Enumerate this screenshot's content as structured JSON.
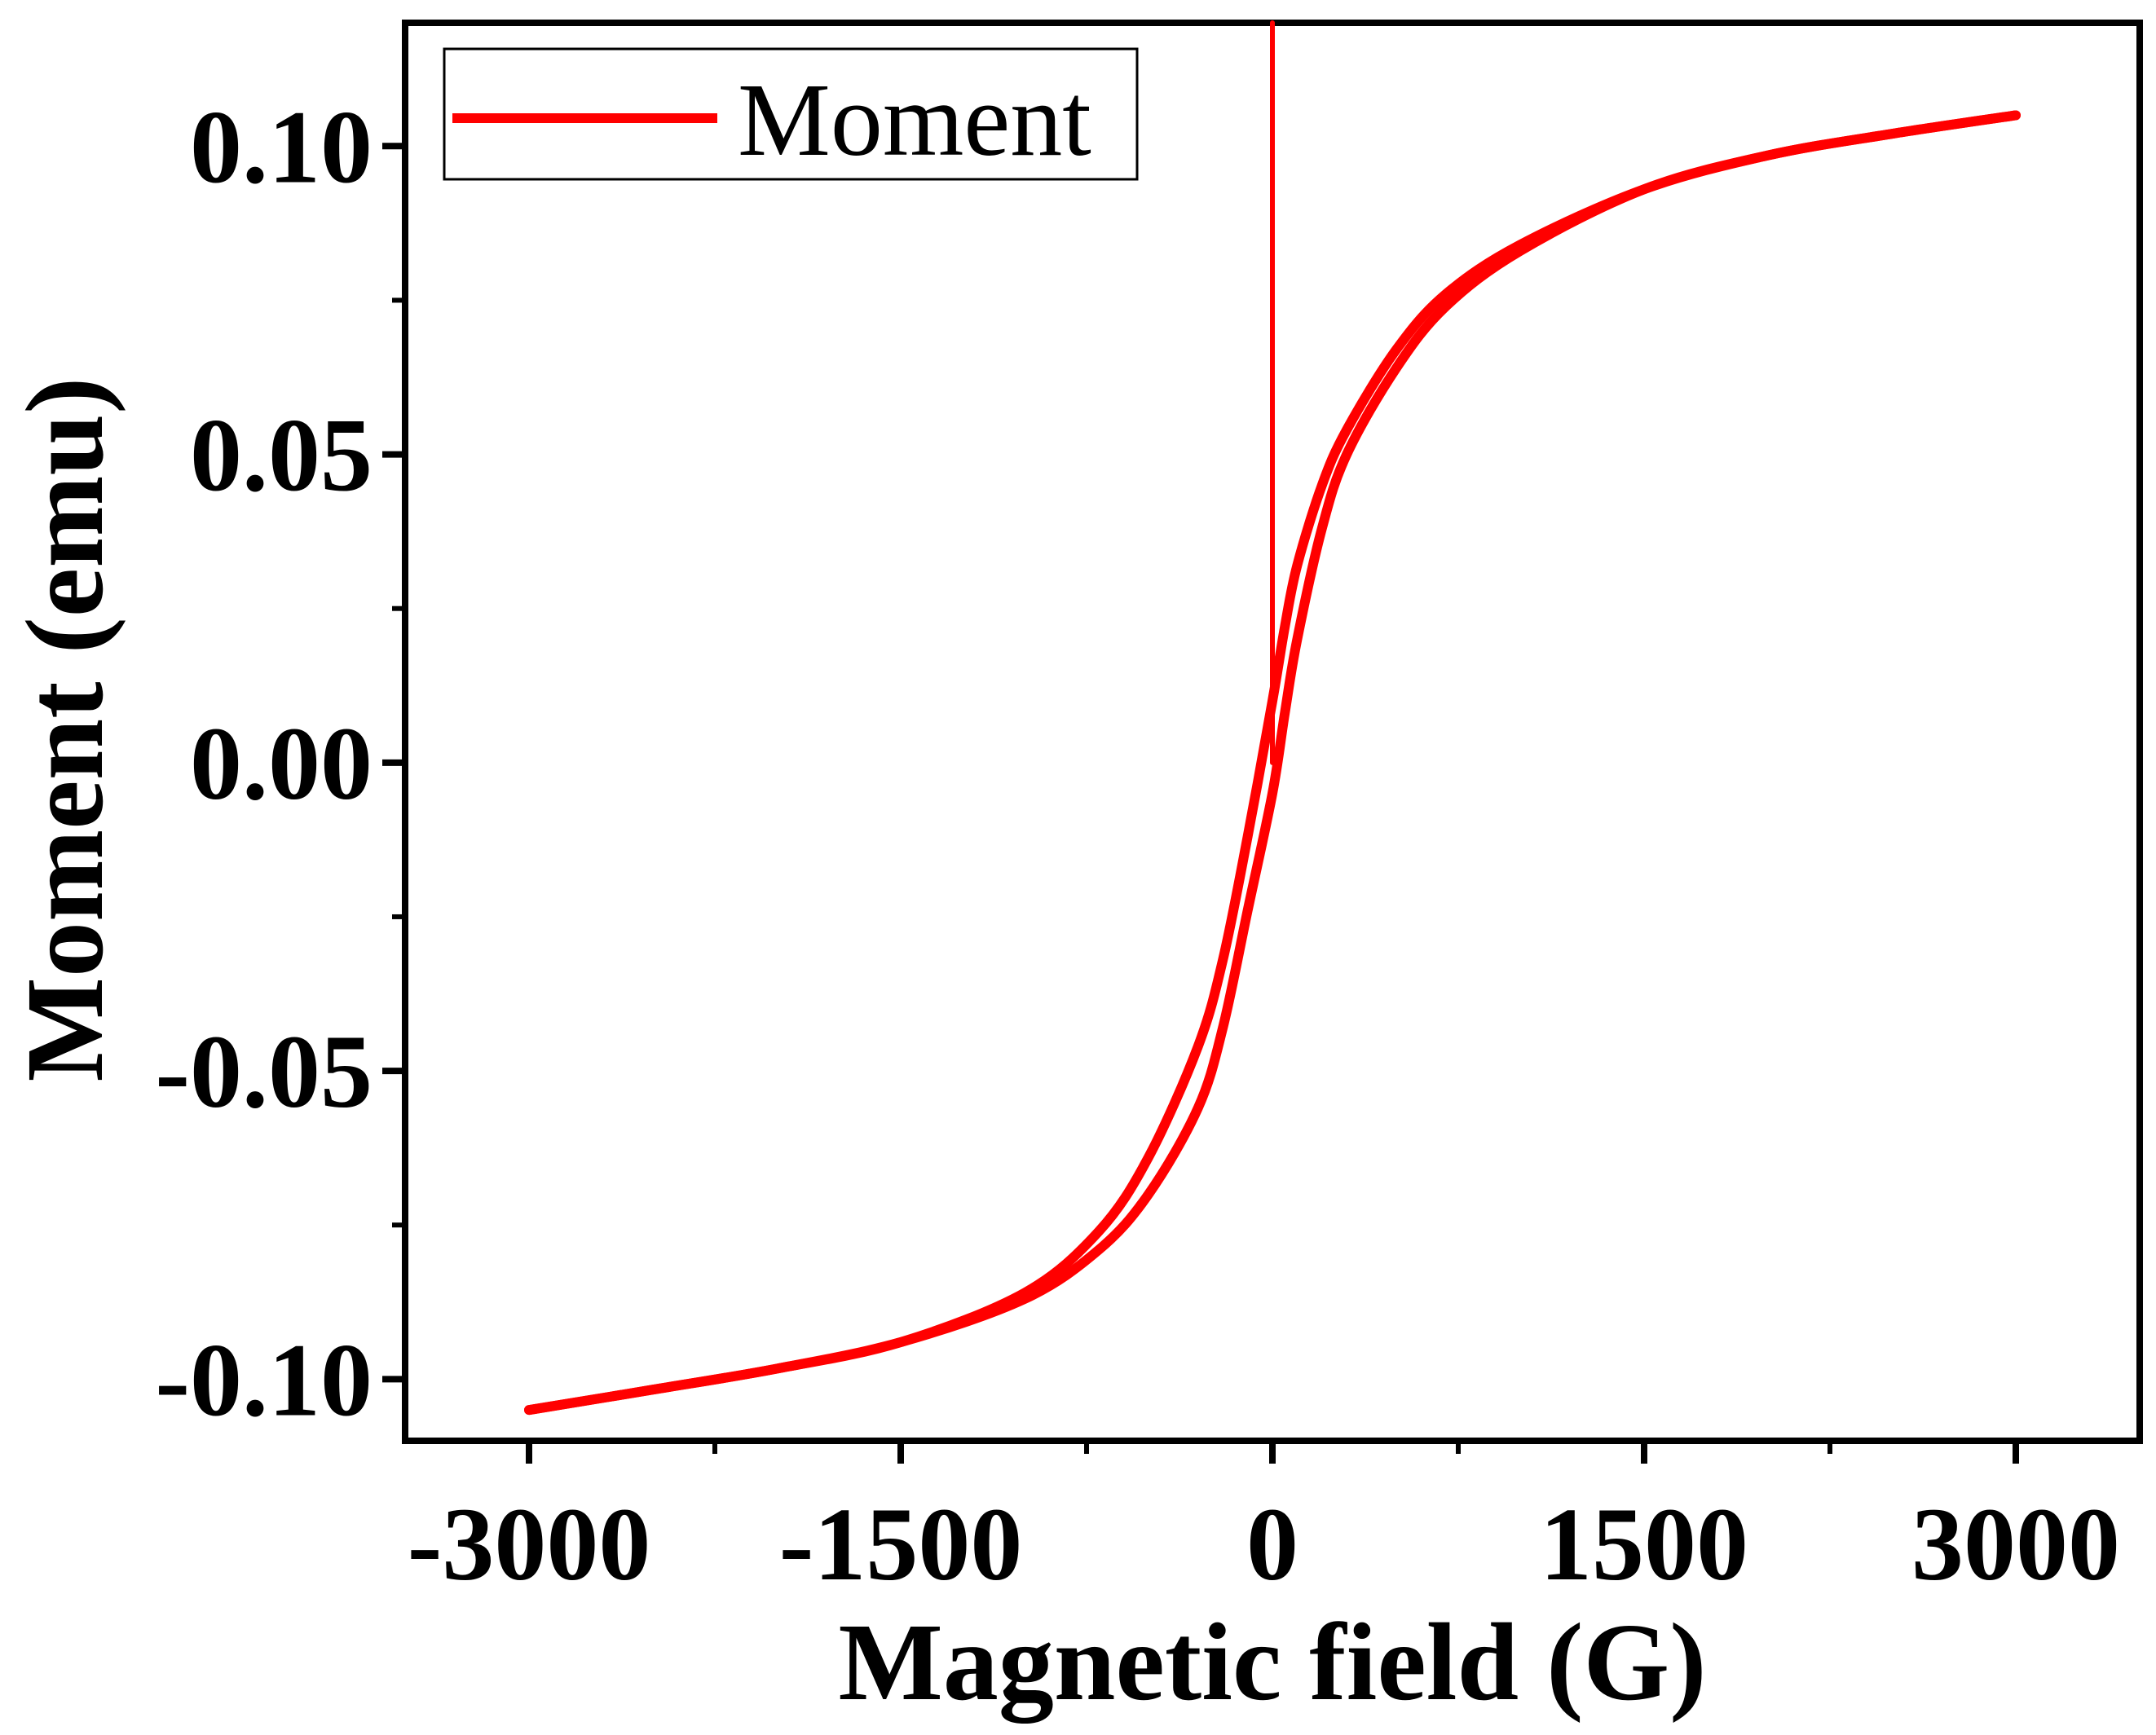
{
  "chart_data": {
    "type": "line",
    "title": "",
    "xlabel": "Magnetic field (G)",
    "ylabel": "Moment (emu)",
    "xlim": [
      -3500,
      3500
    ],
    "ylim": [
      -0.11,
      0.12
    ],
    "x_ticks": [
      -3000,
      -1500,
      0,
      1500,
      3000
    ],
    "x_tick_labels": [
      "-3000",
      "-1500",
      "0",
      "1500",
      "3000"
    ],
    "y_ticks": [
      -0.1,
      -0.05,
      0.0,
      0.05,
      0.1
    ],
    "y_tick_labels": [
      "-0.10",
      "-0.05",
      "0.00",
      "0.05",
      "0.10"
    ],
    "grid": false,
    "legend": {
      "position": "top-left",
      "entries": [
        "Moment"
      ]
    },
    "series": [
      {
        "name": "Moment",
        "color": "#ff0000",
        "branches": [
          {
            "label": "virgin",
            "x": [
              0,
              0
            ],
            "y": [
              0.12,
              0.0
            ]
          },
          {
            "label": "ascending",
            "x": [
              -3000,
              -2500,
              -2000,
              -1500,
              -1000,
              -700,
              -500,
              -300,
              -200,
              -100,
              0,
              50,
              100,
              200,
              300,
              500,
              700,
              1000,
              1500,
              2000,
              2500,
              3000
            ],
            "y": [
              -0.105,
              -0.1017,
              -0.0983,
              -0.094,
              -0.087,
              -0.079,
              -0.07,
              -0.056,
              -0.043,
              -0.024,
              -0.005,
              0.008,
              0.02,
              0.038,
              0.05,
              0.064,
              0.074,
              0.083,
              0.093,
              0.0985,
              0.102,
              0.105
            ]
          },
          {
            "label": "descending",
            "x": [
              3000,
              2500,
              2000,
              1500,
              1000,
              700,
              500,
              300,
              200,
              100,
              50,
              0,
              -100,
              -200,
              -300,
              -500,
              -700,
              -1000,
              -1500,
              -2000,
              -2500,
              -3000
            ],
            "y": [
              0.105,
              0.102,
              0.0985,
              0.093,
              0.084,
              0.076,
              0.067,
              0.054,
              0.045,
              0.032,
              0.022,
              0.01,
              -0.012,
              -0.032,
              -0.046,
              -0.064,
              -0.076,
              -0.086,
              -0.094,
              -0.0983,
              -0.1017,
              -0.105
            ]
          }
        ]
      }
    ]
  }
}
